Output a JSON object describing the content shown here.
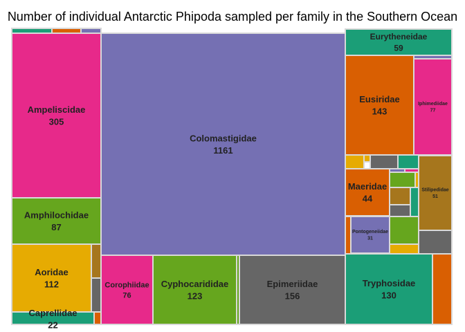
{
  "chart_data": {
    "type": "treemap",
    "title": "Number of individual Antarctic Phipoda sampled per family in the Southern Ocean",
    "units": "individuals",
    "colors": {
      "purple": "#7570b3",
      "pink": "#e7298a",
      "green": "#66a61e",
      "gold": "#e6ab02",
      "teal": "#1b9e77",
      "orange": "#d95f02",
      "brown": "#a6761d",
      "gray": "#666666"
    },
    "families": [
      {
        "name": "Colomastigidae",
        "value": 1161,
        "color": "purple"
      },
      {
        "name": "Ampeliscidae",
        "value": 305,
        "color": "pink"
      },
      {
        "name": "Epimeriidae",
        "value": 156,
        "color": "gray"
      },
      {
        "name": "Eusiridae",
        "value": 143,
        "color": "orange"
      },
      {
        "name": "Tryphosidae",
        "value": 130,
        "color": "teal"
      },
      {
        "name": "Cyphocarididae",
        "value": 123,
        "color": "green"
      },
      {
        "name": "Aoridae",
        "value": 112,
        "color": "gold"
      },
      {
        "name": "Amphilochidae",
        "value": 87,
        "color": "green"
      },
      {
        "name": "Iphimediidae",
        "value": 77,
        "color": "pink"
      },
      {
        "name": "Corophiidae",
        "value": 76,
        "color": "pink"
      },
      {
        "name": "Eurytheneidae",
        "value": 59,
        "color": "teal"
      },
      {
        "name": "Stilipedidae",
        "value": 51,
        "color": "brown"
      },
      {
        "name": "Maeridae",
        "value": 44,
        "color": "orange"
      },
      {
        "name": "Caprellidae",
        "value": 22,
        "color": "teal"
      },
      {
        "name": "Pontogeneiidae",
        "value": 31,
        "color": "purple"
      },
      {
        "name": "",
        "value": null,
        "color": "teal"
      },
      {
        "name": "",
        "value": null,
        "color": "orange"
      },
      {
        "name": "",
        "value": null,
        "color": "purple"
      },
      {
        "name": "",
        "value": null,
        "color": "purple"
      },
      {
        "name": "",
        "value": null,
        "color": "brown"
      },
      {
        "name": "",
        "value": null,
        "color": "gray"
      },
      {
        "name": "",
        "value": null,
        "color": "orange"
      },
      {
        "name": "",
        "value": null,
        "color": "green"
      },
      {
        "name": "",
        "value": null,
        "color": "gold"
      },
      {
        "name": "",
        "value": null,
        "color": "gold"
      },
      {
        "name": "",
        "value": null,
        "color": "gray"
      },
      {
        "name": "",
        "value": null,
        "color": "teal"
      },
      {
        "name": "",
        "value": null,
        "color": "purple"
      },
      {
        "name": "",
        "value": null,
        "color": "pink"
      },
      {
        "name": "",
        "value": null,
        "color": "green"
      },
      {
        "name": "",
        "value": null,
        "color": "gold"
      },
      {
        "name": "",
        "value": null,
        "color": "brown"
      },
      {
        "name": "",
        "value": null,
        "color": "teal"
      },
      {
        "name": "",
        "value": null,
        "color": "gray"
      },
      {
        "name": "",
        "value": null,
        "color": "orange"
      },
      {
        "name": "",
        "value": null,
        "color": "green"
      },
      {
        "name": "",
        "value": null,
        "color": "gold"
      },
      {
        "name": "",
        "value": null,
        "color": "gray"
      },
      {
        "name": "",
        "value": null,
        "color": "orange"
      }
    ]
  }
}
